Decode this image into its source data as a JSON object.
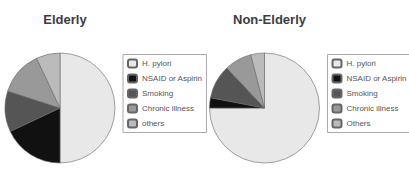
{
  "chart_data": [
    {
      "type": "pie",
      "title": "Elderly",
      "categories": [
        "H. pylori",
        "NSAID or Aspirin",
        "Smoking",
        "Chronic illness",
        "others"
      ],
      "values": [
        50,
        18,
        12,
        13,
        7
      ],
      "colors": [
        "#e8e8e8",
        "#111111",
        "#555555",
        "#999999",
        "#bbbbbb"
      ],
      "legend": "right"
    },
    {
      "type": "pie",
      "title": "Non-Elderly",
      "categories": [
        "H. pylori",
        "NSAID or Aspirin",
        "Smoking",
        "Chronic illness",
        "Others"
      ],
      "values": [
        75,
        3,
        10,
        8,
        4
      ],
      "colors": [
        "#e8e8e8",
        "#111111",
        "#555555",
        "#999999",
        "#bbbbbb"
      ],
      "legend": "right"
    }
  ]
}
